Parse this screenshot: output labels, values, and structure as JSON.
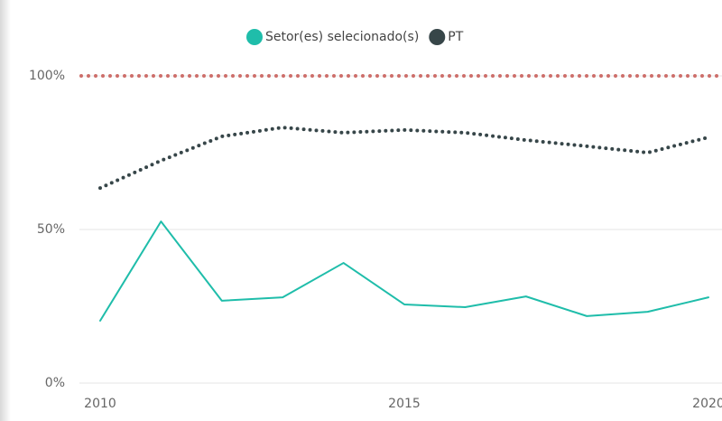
{
  "chart_data": {
    "type": "line",
    "x": [
      2010,
      2011,
      2012,
      2013,
      2014,
      2015,
      2016,
      2017,
      2018,
      2019,
      2020
    ],
    "xlim": [
      2010,
      2020
    ],
    "xticks": [
      2010,
      2015,
      2020
    ],
    "ylim": [
      0,
      100
    ],
    "yticks": [
      {
        "value": 0,
        "label": "0%"
      },
      {
        "value": 50,
        "label": "50%"
      },
      {
        "value": 100,
        "label": "100%"
      }
    ],
    "grid": true,
    "legend": "top",
    "reference_line": {
      "value": 100,
      "color": "#cd6e6a"
    },
    "series": [
      {
        "name": "Setor(es) selecionado(s)",
        "color": "#1fbdaa",
        "line_style": "solid",
        "values": [
          20.3,
          52.6,
          26.8,
          27.9,
          39.1,
          25.6,
          24.7,
          28.2,
          21.8,
          23.2,
          27.9
        ]
      },
      {
        "name": "PT",
        "color": "#374649",
        "line_style": "dotted",
        "values": [
          63.5,
          72.4,
          80.3,
          83.2,
          81.5,
          82.4,
          81.5,
          79.1,
          77.1,
          75.0,
          80.0
        ]
      }
    ]
  }
}
